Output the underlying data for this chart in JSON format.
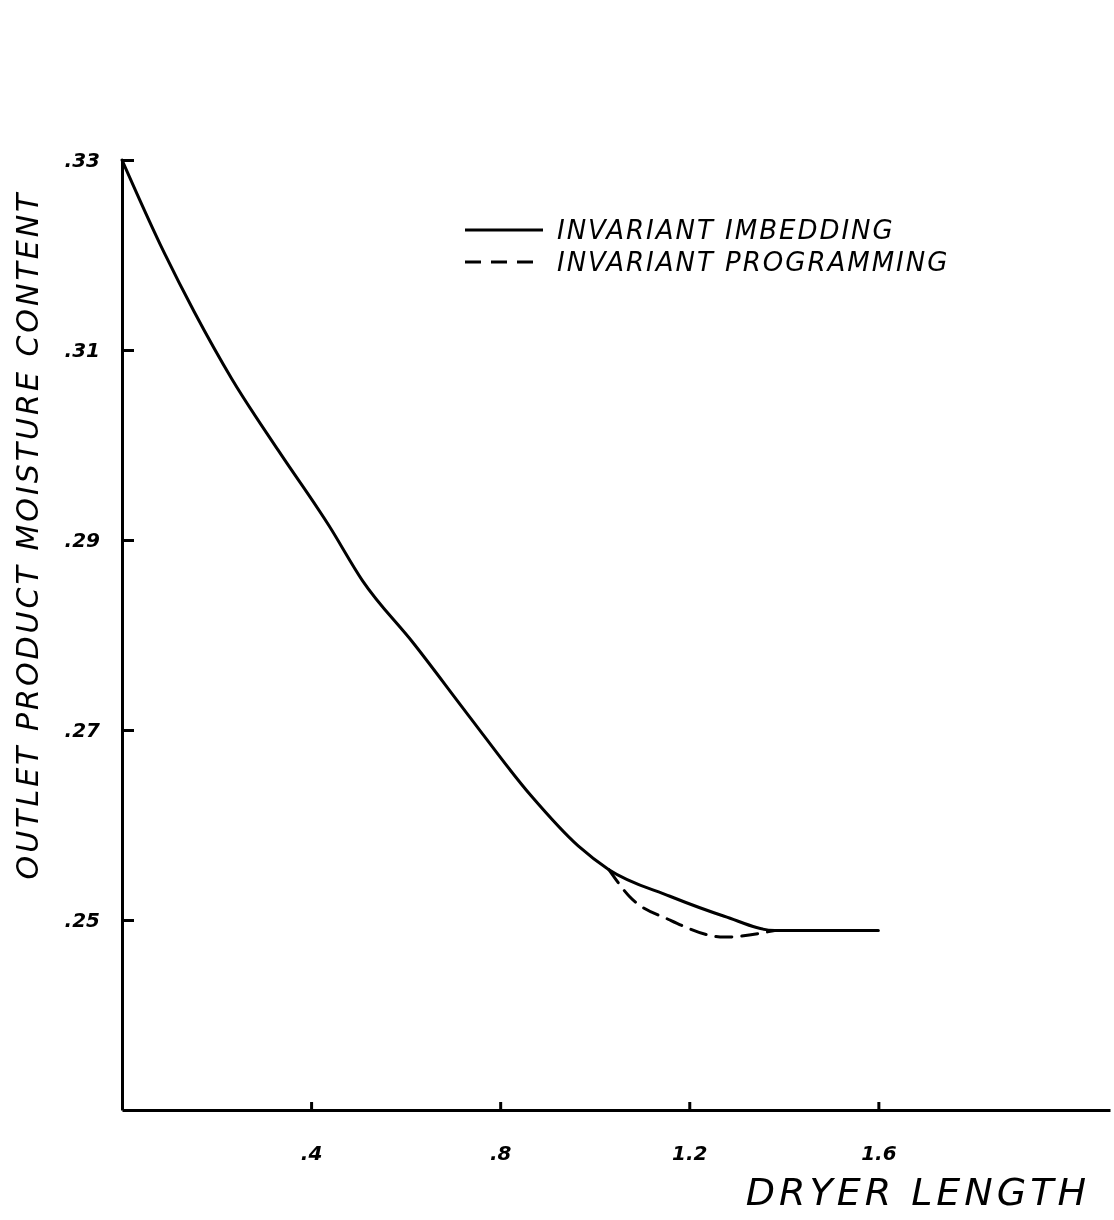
{
  "chart_data": {
    "type": "line",
    "xlabel": "DRYER LENGTH",
    "ylabel": "OUTLET PRODUCT MOISTURE CONTENT",
    "xlim": [
      0,
      2.09
    ],
    "ylim": [
      0.23,
      0.33
    ],
    "xticks": [
      {
        "value": 0.4,
        "label": ".4"
      },
      {
        "value": 0.8,
        "label": ".8"
      },
      {
        "value": 1.2,
        "label": "1.2"
      },
      {
        "value": 1.6,
        "label": "1.6"
      }
    ],
    "yticks": [
      {
        "value": 0.33,
        "label": ".33"
      },
      {
        "value": 0.31,
        "label": ".31"
      },
      {
        "value": 0.29,
        "label": ".29"
      },
      {
        "value": 0.27,
        "label": ".27"
      },
      {
        "value": 0.25,
        "label": ".25"
      }
    ],
    "legend": "top right",
    "grid": false,
    "series": [
      {
        "name": "INVARIANT IMBEDDING",
        "color": "#000000",
        "line_style": "solid",
        "x": [
          0,
          0.081,
          0.153,
          0.233,
          0.331,
          0.438,
          0.509,
          0.617,
          0.732,
          0.865,
          0.965,
          1.03,
          1.159,
          1.274,
          1.381,
          1.6
        ],
        "values": [
          0.33,
          0.3211,
          0.314,
          0.3069,
          0.2994,
          0.2915,
          0.2857,
          0.2791,
          0.2716,
          0.2631,
          0.2578,
          0.2553,
          0.2525,
          0.2504,
          0.2489,
          0.2489
        ]
      },
      {
        "name": "INVARIANT PROGRAMMING",
        "color": "#000000",
        "line_style": "dashed",
        "x": [
          1.03,
          1.073,
          1.159,
          1.274,
          1.381
        ],
        "values": [
          0.2553,
          0.2525,
          0.25,
          0.2482,
          0.2489
        ]
      }
    ]
  }
}
